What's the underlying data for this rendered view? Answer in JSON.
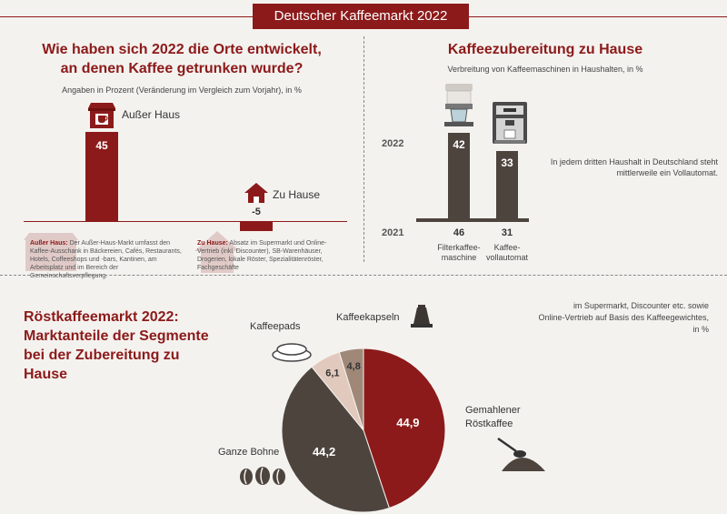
{
  "banner": {
    "title": "Deutscher Kaffeemarkt 2022"
  },
  "left": {
    "title_line1": "Wie haben sich 2022 die Orte entwickelt,",
    "title_line2": "an denen Kaffee getrunken wurde?",
    "subtitle": "Angaben in Prozent (Veränderung im Vergleich zum Vorjahr), in %",
    "note_aussen_head": "Außer Haus:",
    "note_aussen_text": "Der Außer-Haus-Markt umfasst den Kaffee-Ausschank in Bäckereien, Cafés, Restaurants, Hotels, Coffeeshops und -bars, Kantinen, am Arbeitsplatz und im Bereich der Gemeinschaftsverpflegung.",
    "note_zuhause_head": "Zu Hause:",
    "note_zuhause_text": "Absatz im Supermarkt und Online-Vertrieb (inkl. Discounter), SB-Warenhäuser, Drogerien, lokale Röster, Spezialitätenröster, Fachgeschäfte"
  },
  "right": {
    "title": "Kaffeezubereitung zu Hause",
    "subtitle": "Verbreitung von Kaffeemaschinen in Haushalten, in %",
    "year_2022": "2022",
    "year_2021": "2021",
    "note": "In jedem dritten Haushalt in Deutschland steht mittlerweile ein Vollautomat."
  },
  "bottom": {
    "title_line1": "Röstkaffeemarkt 2022:",
    "title_line2": "Marktanteile der Segmente",
    "title_line3": "bei der Zubereitung zu",
    "title_line4": "Hause",
    "note_line1": "im Supermarkt, Discounter etc. sowie",
    "note_line2": "Online-Vertrieb auf Basis des Kaffeegewichtes,",
    "note_line3": "in %"
  },
  "chart_data": [
    {
      "type": "bar",
      "title": "Wie haben sich 2022 die Orte entwickelt, an denen Kaffee getrunken wurde?",
      "ylabel": "Veränderung im Vergleich zum Vorjahr, in %",
      "categories": [
        "Außer Haus",
        "Zu Hause"
      ],
      "values": [
        45,
        -5
      ],
      "value_labels": [
        "45",
        "-5"
      ],
      "ylim": [
        -5,
        45
      ]
    },
    {
      "type": "bar",
      "title": "Kaffeezubereitung zu Hause",
      "ylabel": "Verbreitung von Kaffeemaschinen in Haushalten, in %",
      "categories": [
        "Filterkaffee-maschine",
        "Kaffee-vollautomat"
      ],
      "category_lines": [
        [
          "Filterkaffee-",
          "maschine"
        ],
        [
          "Kaffee-",
          "vollautomat"
        ]
      ],
      "series": [
        {
          "name": "2022",
          "values": [
            42,
            33
          ]
        },
        {
          "name": "2021",
          "values": [
            46,
            31
          ]
        }
      ]
    },
    {
      "type": "pie",
      "title": "Röstkaffeemarkt 2022: Marktanteile der Segmente bei der Zubereitung zu Hause",
      "labels": [
        "Gemahlener Röstkaffee",
        "Ganze Bohne",
        "Kaffeepads",
        "Kaffeekapseln"
      ],
      "label_lines": [
        [
          "Gemahlener",
          "Röstkaffee"
        ],
        [
          "Ganze Bohne"
        ],
        [
          "Kaffeepads"
        ],
        [
          "Kaffeekapseln"
        ]
      ],
      "values": [
        44.9,
        44.2,
        6.1,
        4.8
      ],
      "value_labels": [
        "44,9",
        "44,2",
        "6,1",
        "4,8"
      ],
      "colors": [
        "#8c1a1a",
        "#4e443e",
        "#e2c9bd",
        "#a08878"
      ]
    }
  ]
}
